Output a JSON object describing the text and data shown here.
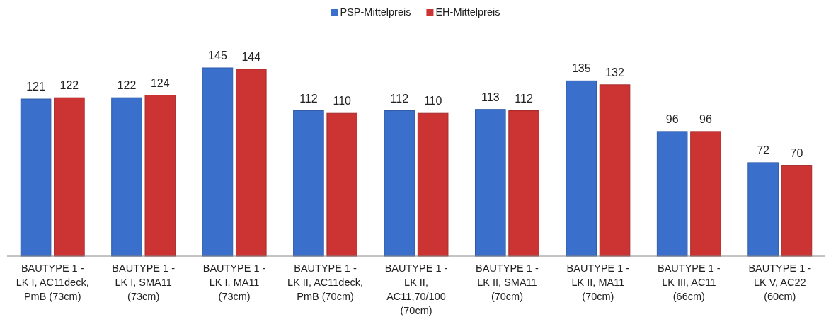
{
  "chart_data": {
    "type": "bar",
    "categories": [
      "BAUTYPE 1 - LK I, AC11deck, PmB (73cm)",
      "BAUTYPE 1 - LK I, SMA11 (73cm)",
      "BAUTYPE 1 - LK I, MA11 (73cm)",
      "BAUTYPE 1 - LK II, AC11deck, PmB (70cm)",
      "BAUTYPE 1 - LK II, AC11,70/100 (70cm)",
      "BAUTYPE 1 - LK II, SMA11 (70cm)",
      "BAUTYPE 1 - LK II, MA11 (70cm)",
      "BAUTYPE 1 - LK III, AC11 (66cm)",
      "BAUTYPE 1 - LK V, AC22 (60cm)"
    ],
    "series": [
      {
        "name": "PSP-Mittelpreis",
        "color": "#3a6fcc",
        "values": [
          121,
          122,
          145,
          112,
          112,
          113,
          135,
          96,
          72
        ]
      },
      {
        "name": "EH-Mittelpreis",
        "color": "#cc3333",
        "values": [
          122,
          124,
          144,
          110,
          110,
          112,
          132,
          96,
          70
        ]
      }
    ],
    "data_labels": true,
    "legend": "top",
    "grid": false
  }
}
